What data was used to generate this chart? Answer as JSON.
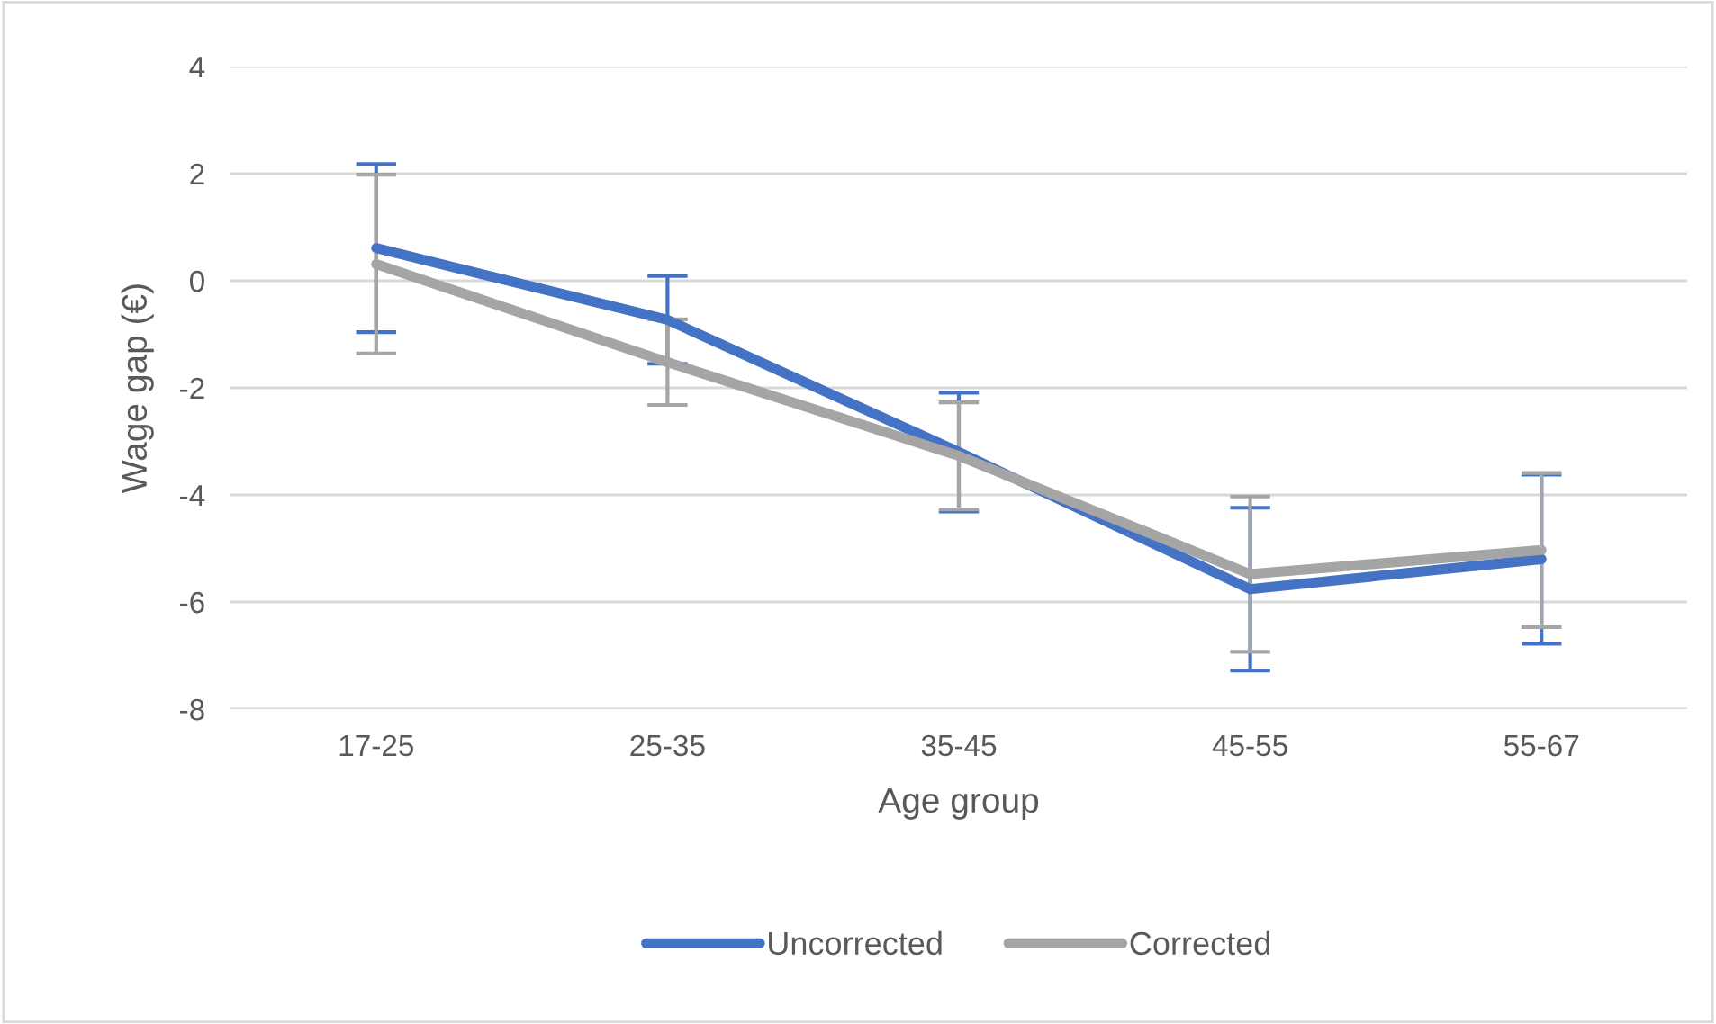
{
  "chart_data": {
    "type": "line",
    "xlabel": "Age group",
    "ylabel": "Wage gap (€)",
    "categories": [
      "17-25",
      "25-35",
      "35-45",
      "45-55",
      "55-67"
    ],
    "series": [
      {
        "name": "Uncorrected",
        "color": "#4472c4",
        "values": [
          0.61,
          -0.73,
          -3.2,
          -5.76,
          -5.2
        ],
        "errors": [
          1.57,
          0.82,
          1.11,
          1.52,
          1.58
        ]
      },
      {
        "name": "Corrected",
        "color": "#a5a5a5",
        "values": [
          0.31,
          -1.52,
          -3.27,
          -5.48,
          -5.03
        ],
        "errors": [
          1.67,
          0.8,
          1.0,
          1.45,
          1.44
        ]
      }
    ],
    "ylim": [
      -8,
      4
    ],
    "yticks": [
      -8,
      -6,
      -4,
      -2,
      0,
      2,
      4
    ],
    "grid": "y",
    "legend": "bottom",
    "marker": "none",
    "line_style": "solid"
  }
}
